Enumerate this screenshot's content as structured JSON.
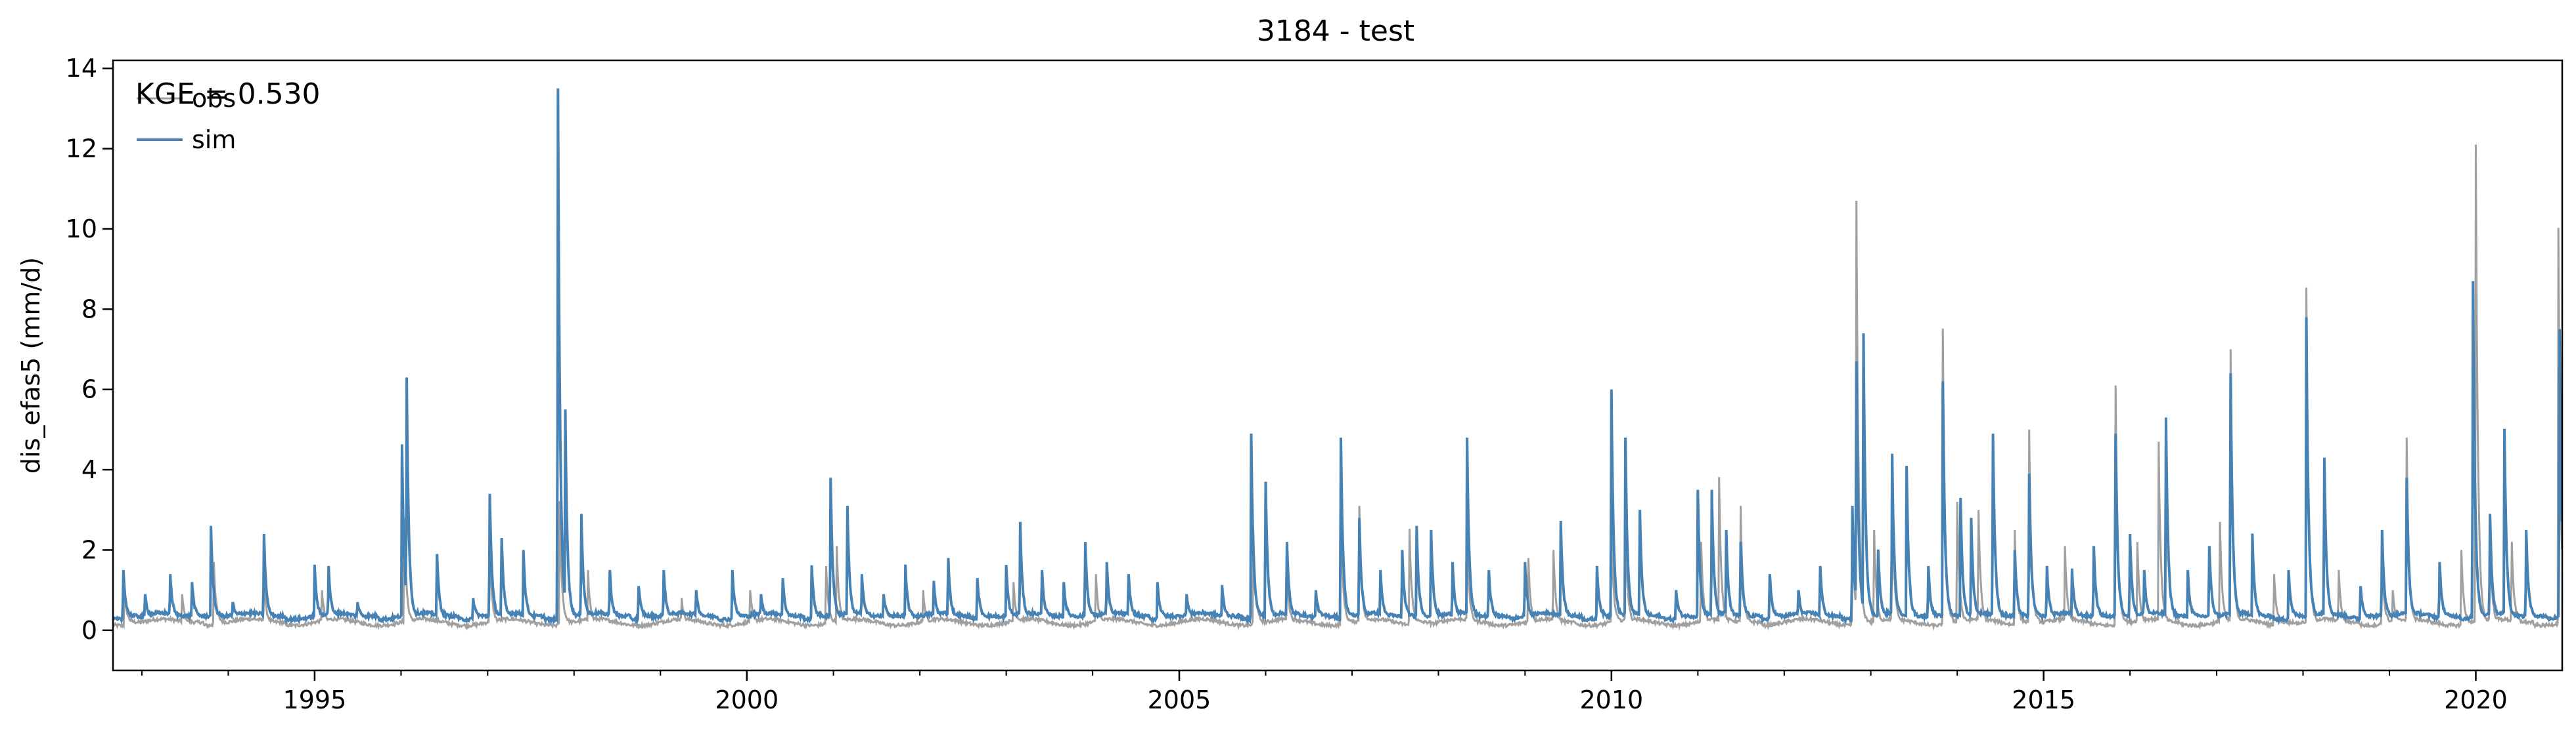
{
  "chart_data": {
    "type": "line",
    "title": "3184 - test",
    "xlabel": "",
    "ylabel": "dis_efas5 (mm/d)",
    "xlim": [
      "1992-09-01",
      "2020-12-31"
    ],
    "ylim": [
      -1,
      14.2
    ],
    "xticks": [
      {
        "date": "1995-01-01",
        "label": "1995"
      },
      {
        "date": "2000-01-01",
        "label": "2000"
      },
      {
        "date": "2005-01-01",
        "label": "2005"
      },
      {
        "date": "2010-01-01",
        "label": "2010"
      },
      {
        "date": "2015-01-01",
        "label": "2015"
      },
      {
        "date": "2020-01-01",
        "label": "2020"
      }
    ],
    "yticks": [
      0,
      2,
      4,
      6,
      8,
      10,
      12,
      14
    ],
    "grid": false,
    "legend": {
      "placement": "upper left",
      "entries": [
        "obs",
        "sim"
      ]
    },
    "annotation": "KGE = 0.530",
    "series": [
      {
        "name": "obs",
        "color": "#a0a0a0",
        "baseline": 0.2,
        "peaks": [
          [
            "1992-10-20",
            1.0
          ],
          [
            "1993-06-20",
            0.9
          ],
          [
            "1993-11-01",
            1.7
          ],
          [
            "1994-06-01",
            1.2
          ],
          [
            "1995-02-01",
            1.0
          ],
          [
            "1996-01-15",
            2.8
          ],
          [
            "1997-01-10",
            2.1
          ],
          [
            "1997-11-01",
            3.2
          ],
          [
            "1998-03-01",
            1.5
          ],
          [
            "1999-04-01",
            0.8
          ],
          [
            "2000-01-15",
            1.0
          ],
          [
            "2000-12-01",
            1.6
          ],
          [
            "2001-01-15",
            2.1
          ],
          [
            "2002-01-15",
            1.0
          ],
          [
            "2003-02-01",
            1.2
          ],
          [
            "2004-01-15",
            1.4
          ],
          [
            "2005-11-10",
            2.5
          ],
          [
            "2006-04-01",
            1.5
          ],
          [
            "2006-11-15",
            2.9
          ],
          [
            "2007-02-01",
            3.1
          ],
          [
            "2007-09-01",
            2.5
          ],
          [
            "2008-05-01",
            2.5
          ],
          [
            "2009-01-15",
            1.8
          ],
          [
            "2009-05-01",
            2.0
          ],
          [
            "2010-01-01",
            2.5
          ],
          [
            "2010-03-01",
            2.7
          ],
          [
            "2011-01-15",
            2.2
          ],
          [
            "2011-04-01",
            3.8
          ],
          [
            "2011-07-01",
            3.1
          ],
          [
            "2012-10-15",
            2.5
          ],
          [
            "2012-11-01",
            10.7
          ],
          [
            "2013-01-15",
            2.5
          ],
          [
            "2013-04-01",
            3.5
          ],
          [
            "2013-11-01",
            7.5
          ],
          [
            "2014-01-01",
            3.2
          ],
          [
            "2014-04-01",
            3.0
          ],
          [
            "2014-09-01",
            2.5
          ],
          [
            "2014-11-01",
            5.0
          ],
          [
            "2015-04-01",
            2.1
          ],
          [
            "2015-11-01",
            6.1
          ],
          [
            "2016-02-01",
            2.2
          ],
          [
            "2016-05-01",
            4.7
          ],
          [
            "2017-01-15",
            2.7
          ],
          [
            "2017-03-01",
            7.0
          ],
          [
            "2017-09-01",
            1.4
          ],
          [
            "2018-01-15",
            8.5
          ],
          [
            "2018-06-01",
            1.5
          ],
          [
            "2018-12-01",
            1.7
          ],
          [
            "2019-01-15",
            1.0
          ],
          [
            "2019-03-15",
            4.8
          ],
          [
            "2019-11-01",
            2.0
          ],
          [
            "2020-01-01",
            12.1
          ],
          [
            "2020-03-01",
            2.3
          ],
          [
            "2020-06-01",
            2.2
          ],
          [
            "2020-12-15",
            10.0
          ]
        ]
      },
      {
        "name": "sim",
        "color": "#4682b4",
        "baseline": 0.35,
        "peaks": [
          [
            "1992-10-15",
            1.5
          ],
          [
            "1993-01-15",
            0.9
          ],
          [
            "1993-05-01",
            1.4
          ],
          [
            "1993-08-01",
            1.2
          ],
          [
            "1993-10-20",
            2.6
          ],
          [
            "1994-01-20",
            0.7
          ],
          [
            "1994-06-01",
            2.4
          ],
          [
            "1995-01-01",
            1.6
          ],
          [
            "1995-03-01",
            1.6
          ],
          [
            "1995-07-01",
            0.7
          ],
          [
            "1996-01-05",
            4.6
          ],
          [
            "1996-01-25",
            6.3
          ],
          [
            "1996-06-01",
            1.9
          ],
          [
            "1996-11-01",
            0.8
          ],
          [
            "1997-01-10",
            3.4
          ],
          [
            "1997-03-01",
            2.3
          ],
          [
            "1997-06-01",
            2.0
          ],
          [
            "1997-10-25",
            13.5
          ],
          [
            "1997-11-25",
            5.5
          ],
          [
            "1998-02-01",
            2.9
          ],
          [
            "1998-06-01",
            1.5
          ],
          [
            "1998-10-01",
            1.1
          ],
          [
            "1999-01-15",
            1.5
          ],
          [
            "1999-06-01",
            1.0
          ],
          [
            "1999-11-01",
            1.5
          ],
          [
            "2000-03-01",
            0.9
          ],
          [
            "2000-06-01",
            1.3
          ],
          [
            "2000-10-01",
            1.6
          ],
          [
            "2000-12-20",
            3.8
          ],
          [
            "2001-03-01",
            3.1
          ],
          [
            "2001-05-01",
            1.4
          ],
          [
            "2001-08-01",
            0.9
          ],
          [
            "2001-11-01",
            1.6
          ],
          [
            "2002-03-01",
            1.2
          ],
          [
            "2002-05-01",
            1.8
          ],
          [
            "2002-09-01",
            1.3
          ],
          [
            "2003-01-01",
            1.6
          ],
          [
            "2003-03-01",
            2.7
          ],
          [
            "2003-06-01",
            1.5
          ],
          [
            "2003-09-01",
            1.2
          ],
          [
            "2003-12-01",
            2.2
          ],
          [
            "2004-03-01",
            1.7
          ],
          [
            "2004-06-01",
            1.4
          ],
          [
            "2004-10-01",
            1.2
          ],
          [
            "2005-02-01",
            0.9
          ],
          [
            "2005-07-01",
            1.1
          ],
          [
            "2005-11-01",
            4.9
          ],
          [
            "2006-01-01",
            3.7
          ],
          [
            "2006-04-01",
            2.2
          ],
          [
            "2006-08-01",
            1.0
          ],
          [
            "2006-11-15",
            4.8
          ],
          [
            "2007-02-01",
            2.8
          ],
          [
            "2007-05-01",
            1.5
          ],
          [
            "2007-08-01",
            2.0
          ],
          [
            "2007-10-01",
            2.6
          ],
          [
            "2007-12-01",
            2.5
          ],
          [
            "2008-03-01",
            1.7
          ],
          [
            "2008-05-01",
            4.8
          ],
          [
            "2008-08-01",
            1.5
          ],
          [
            "2009-01-01",
            1.7
          ],
          [
            "2009-06-01",
            2.7
          ],
          [
            "2009-11-01",
            1.6
          ],
          [
            "2010-01-01",
            6.0
          ],
          [
            "2010-03-01",
            4.8
          ],
          [
            "2010-05-01",
            3.0
          ],
          [
            "2010-10-01",
            1.0
          ],
          [
            "2011-01-01",
            3.5
          ],
          [
            "2011-03-01",
            3.5
          ],
          [
            "2011-05-01",
            2.5
          ],
          [
            "2011-07-01",
            2.2
          ],
          [
            "2011-11-01",
            1.4
          ],
          [
            "2012-03-01",
            1.0
          ],
          [
            "2012-06-01",
            1.6
          ],
          [
            "2012-10-15",
            3.1
          ],
          [
            "2012-11-01",
            6.7
          ],
          [
            "2012-12-01",
            7.4
          ],
          [
            "2013-02-01",
            2.0
          ],
          [
            "2013-04-01",
            4.4
          ],
          [
            "2013-06-01",
            4.1
          ],
          [
            "2013-09-01",
            1.6
          ],
          [
            "2013-11-01",
            6.2
          ],
          [
            "2014-01-15",
            3.3
          ],
          [
            "2014-03-01",
            2.8
          ],
          [
            "2014-06-01",
            4.9
          ],
          [
            "2014-09-01",
            2.0
          ],
          [
            "2014-11-01",
            3.9
          ],
          [
            "2015-01-15",
            1.6
          ],
          [
            "2015-05-01",
            1.5
          ],
          [
            "2015-08-01",
            2.1
          ],
          [
            "2015-11-01",
            4.9
          ],
          [
            "2016-01-01",
            2.4
          ],
          [
            "2016-03-01",
            1.5
          ],
          [
            "2016-06-01",
            5.3
          ],
          [
            "2016-09-01",
            1.5
          ],
          [
            "2016-12-01",
            2.1
          ],
          [
            "2017-03-01",
            6.4
          ],
          [
            "2017-06-01",
            2.4
          ],
          [
            "2017-11-01",
            1.5
          ],
          [
            "2018-01-15",
            7.8
          ],
          [
            "2018-04-01",
            4.3
          ],
          [
            "2018-09-01",
            1.1
          ],
          [
            "2018-12-01",
            2.5
          ],
          [
            "2019-03-15",
            3.8
          ],
          [
            "2019-08-01",
            1.7
          ],
          [
            "2019-12-20",
            8.7
          ],
          [
            "2020-03-01",
            2.9
          ],
          [
            "2020-05-01",
            5.0
          ],
          [
            "2020-08-01",
            2.5
          ],
          [
            "2020-12-20",
            7.5
          ]
        ]
      }
    ]
  }
}
